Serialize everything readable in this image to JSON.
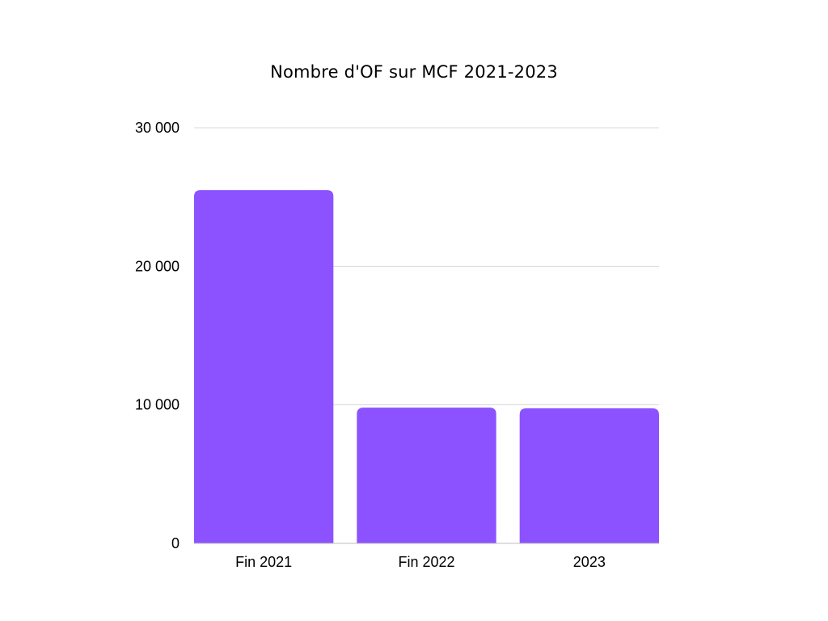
{
  "chart_data": {
    "type": "bar",
    "title": "Nombre d'OF sur MCF 2021-2023",
    "categories": [
      "Fin 2021",
      "Fin 2022",
      "2023"
    ],
    "values": [
      25500,
      9800,
      9750
    ],
    "ylim": [
      0,
      30000
    ],
    "yticks": [
      0,
      10000,
      20000,
      30000
    ],
    "ytick_labels": [
      "0",
      "10 000",
      "20 000",
      "30 000"
    ],
    "xlabel": "",
    "ylabel": "",
    "bar_color": "#8c52ff",
    "grid": true,
    "legend": "none"
  }
}
